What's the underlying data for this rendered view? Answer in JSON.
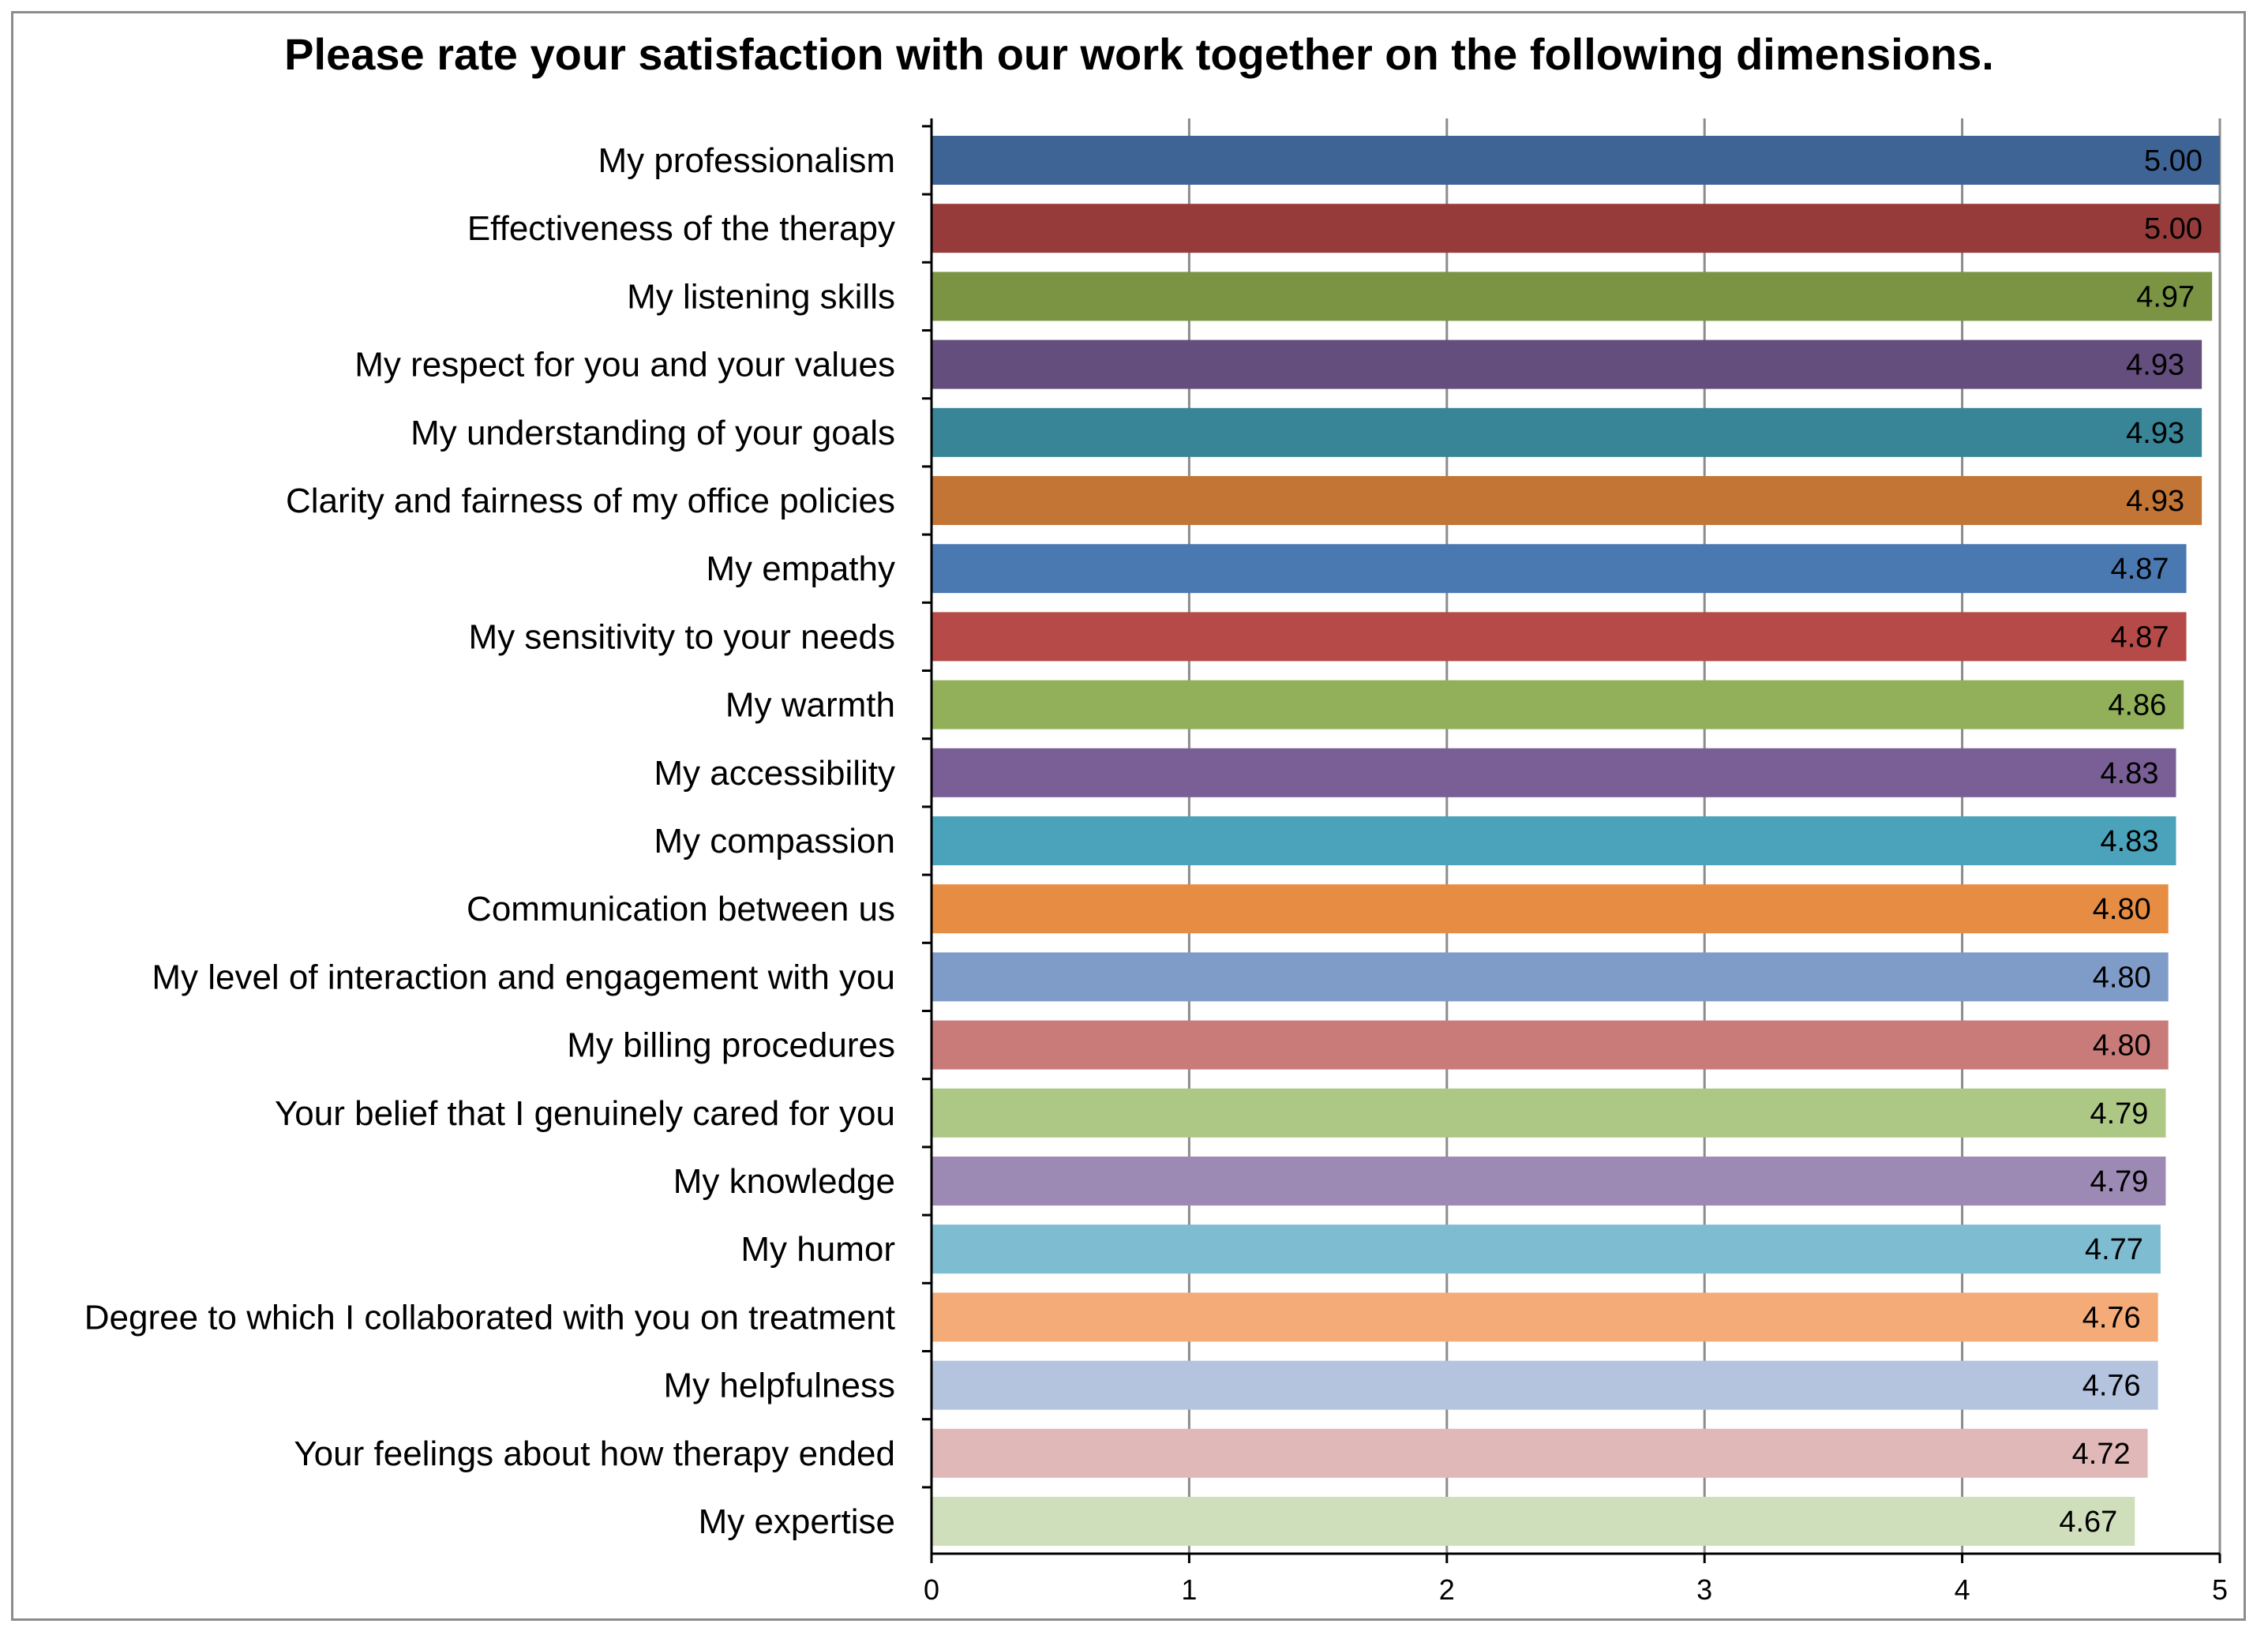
{
  "chart_data": {
    "type": "bar",
    "orientation": "horizontal",
    "title": "Please rate your satisfaction with our work together on the following dimensions.",
    "xlabel": "",
    "ylabel": "",
    "xlim": [
      0,
      5
    ],
    "x_ticks": [
      "0",
      "1",
      "2",
      "3",
      "4",
      "5"
    ],
    "grid": "vertical",
    "legend": "none",
    "categories": [
      "My professionalism",
      "Effectiveness of the therapy",
      "My listening skills",
      "My respect for you and your values",
      "My understanding of your goals",
      "Clarity and fairness of my office policies",
      "My empathy",
      "My sensitivity to your needs",
      "My warmth",
      "My accessibility",
      "My compassion",
      "Communication between us",
      "My level of interaction and engagement with you",
      "My billing procedures",
      "Your belief that I genuinely cared for you",
      "My knowledge",
      "My humor",
      "Degree to which I collaborated with you on treatment",
      "My helpfulness",
      "Your feelings about how therapy ended",
      "My expertise"
    ],
    "values": [
      5.0,
      5.0,
      4.97,
      4.93,
      4.93,
      4.93,
      4.87,
      4.87,
      4.86,
      4.83,
      4.83,
      4.8,
      4.8,
      4.8,
      4.79,
      4.79,
      4.77,
      4.76,
      4.76,
      4.72,
      4.67
    ],
    "value_labels": [
      "5.00",
      "5.00",
      "4.97",
      "4.93",
      "4.93",
      "4.93",
      "4.87",
      "4.87",
      "4.86",
      "4.83",
      "4.83",
      "4.80",
      "4.80",
      "4.80",
      "4.79",
      "4.79",
      "4.77",
      "4.76",
      "4.76",
      "4.72",
      "4.67"
    ],
    "colors": [
      "#3e6496",
      "#973b3a",
      "#7a9443",
      "#634e7d",
      "#378597",
      "#c27535",
      "#4a79b2",
      "#b54a48",
      "#92b05a",
      "#7a5f97",
      "#4aa3ba",
      "#e68d43",
      "#7f9cc9",
      "#c97b7a",
      "#adc785",
      "#9d8ab4",
      "#7dbcd1",
      "#f4ab78",
      "#b4c3de",
      "#e0b8b7",
      "#d0dfbb"
    ],
    "grid_color": "#8c8c8c",
    "axis_color": "#000000"
  }
}
